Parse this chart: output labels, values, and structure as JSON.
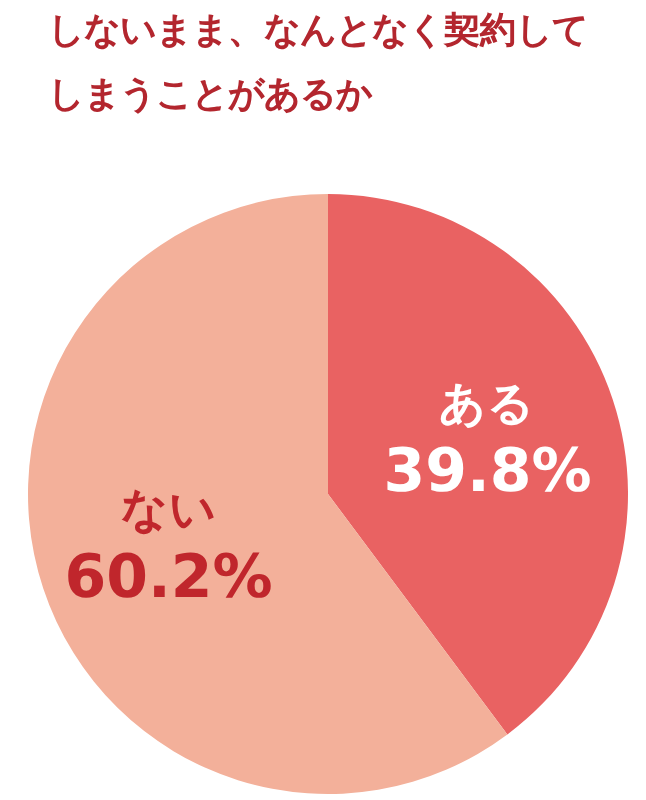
{
  "chart_data": {
    "type": "pie",
    "title": "しないまま、なんとなく契約してしまうことがあるか",
    "categories": [
      "ある",
      "ない"
    ],
    "values": [
      39.8,
      60.2
    ],
    "colors": [
      "#e96262",
      "#f3b09a"
    ],
    "value_labels": [
      "39.8%",
      "60.2%"
    ]
  }
}
